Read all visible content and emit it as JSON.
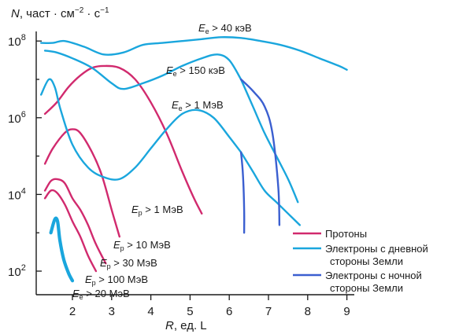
{
  "chart_data": {
    "type": "line",
    "title": "N, част · см⁻² · с⁻¹",
    "title_parts": {
      "symbol": "N",
      "rest": ", част · см",
      "exp1": "−2",
      "mid": " · с",
      "exp2": "−1"
    },
    "xlabel": "R, ед. L",
    "xlabel_parts": {
      "symbol": "R",
      "rest": ", ед. L"
    },
    "x_ticks": [
      "2",
      "3",
      "4",
      "5",
      "6",
      "7",
      "8",
      "9"
    ],
    "y_ticks": [
      {
        "value": 2,
        "label": "10",
        "exp": "2"
      },
      {
        "value": 4,
        "label": "10",
        "exp": "4"
      },
      {
        "value": 6,
        "label": "10",
        "exp": "6"
      },
      {
        "value": 8,
        "label": "10",
        "exp": "8"
      }
    ],
    "xlim": [
      1.0,
      9.0
    ],
    "ylim_log10": [
      1.5,
      8.0
    ],
    "yscale": "log",
    "grid": false,
    "legend": [
      {
        "label": "Протоны",
        "color": "#d12a6e"
      },
      {
        "label": "Электроны с дневной",
        "label2": "стороны Земли",
        "color": "#1aa6dd"
      },
      {
        "label": "Электроны с ночной",
        "label2": "стороны Земли",
        "color": "#3b5fd0"
      }
    ],
    "legend_position": "bottom-right",
    "series": [
      {
        "group": "proton",
        "color": "#d12a6e",
        "width": 2.4,
        "points": [
          [
            1.3,
            6.1
          ],
          [
            1.6,
            6.4
          ],
          [
            1.9,
            6.8
          ],
          [
            2.2,
            7.1
          ],
          [
            2.5,
            7.3
          ],
          [
            2.8,
            7.35
          ],
          [
            3.2,
            7.3
          ],
          [
            3.6,
            7.0
          ],
          [
            4.0,
            6.4
          ],
          [
            4.4,
            5.6
          ],
          [
            4.8,
            4.6
          ],
          [
            5.1,
            3.9
          ],
          [
            5.3,
            3.5
          ]
        ]
      },
      {
        "group": "proton",
        "color": "#d12a6e",
        "width": 2.4,
        "points": [
          [
            1.3,
            4.8
          ],
          [
            1.5,
            5.2
          ],
          [
            1.8,
            5.6
          ],
          [
            2.0,
            5.7
          ],
          [
            2.2,
            5.6
          ],
          [
            2.5,
            5.1
          ],
          [
            2.75,
            4.5
          ],
          [
            3.0,
            3.6
          ],
          [
            3.2,
            2.9
          ]
        ]
      },
      {
        "group": "proton",
        "color": "#d12a6e",
        "width": 2.4,
        "points": [
          [
            1.3,
            4.1
          ],
          [
            1.45,
            4.35
          ],
          [
            1.6,
            4.4
          ],
          [
            1.8,
            4.3
          ],
          [
            2.0,
            3.9
          ],
          [
            2.2,
            3.6
          ],
          [
            2.4,
            3.2
          ],
          [
            2.6,
            2.7
          ],
          [
            2.85,
            2.2
          ]
        ]
      },
      {
        "group": "proton",
        "color": "#d12a6e",
        "width": 2.4,
        "points": [
          [
            1.3,
            3.9
          ],
          [
            1.45,
            4.1
          ],
          [
            1.6,
            4.05
          ],
          [
            1.8,
            3.75
          ],
          [
            2.0,
            3.3
          ],
          [
            2.2,
            2.9
          ],
          [
            2.4,
            2.4
          ],
          [
            2.6,
            2.0
          ]
        ]
      },
      {
        "group": "electron-day",
        "color": "#1aa6dd",
        "width": 2.4,
        "points": [
          [
            1.2,
            7.95
          ],
          [
            1.5,
            7.95
          ],
          [
            1.8,
            8.0
          ],
          [
            2.3,
            7.85
          ],
          [
            2.8,
            7.65
          ],
          [
            3.3,
            7.7
          ],
          [
            3.8,
            7.9
          ],
          [
            4.3,
            7.95
          ],
          [
            4.8,
            8.0
          ],
          [
            5.3,
            8.05
          ],
          [
            5.8,
            8.1
          ],
          [
            6.3,
            8.08
          ],
          [
            6.8,
            8.0
          ],
          [
            7.3,
            7.9
          ],
          [
            7.8,
            7.75
          ],
          [
            8.3,
            7.55
          ],
          [
            8.8,
            7.35
          ],
          [
            9.0,
            7.25
          ]
        ]
      },
      {
        "group": "electron-day",
        "color": "#1aa6dd",
        "width": 2.4,
        "points": [
          [
            1.3,
            7.75
          ],
          [
            1.6,
            7.7
          ],
          [
            2.0,
            7.55
          ],
          [
            2.5,
            7.3
          ],
          [
            3.0,
            6.9
          ],
          [
            3.3,
            6.75
          ],
          [
            3.8,
            6.9
          ],
          [
            4.3,
            7.1
          ],
          [
            4.8,
            7.35
          ],
          [
            5.3,
            7.55
          ],
          [
            5.7,
            7.65
          ],
          [
            6.0,
            7.5
          ],
          [
            6.3,
            7.0
          ]
        ]
      },
      {
        "group": "electron-day",
        "color": "#1aa6dd",
        "width": 2.4,
        "points": [
          [
            1.2,
            6.6
          ],
          [
            1.4,
            7.0
          ],
          [
            1.55,
            6.8
          ],
          [
            1.7,
            6.2
          ],
          [
            2.0,
            5.3
          ],
          [
            2.4,
            4.7
          ],
          [
            2.8,
            4.45
          ],
          [
            3.2,
            4.4
          ],
          [
            3.6,
            4.7
          ],
          [
            4.0,
            5.2
          ],
          [
            4.4,
            5.7
          ],
          [
            4.8,
            6.1
          ],
          [
            5.2,
            6.2
          ],
          [
            5.6,
            6.0
          ],
          [
            6.0,
            5.5
          ],
          [
            6.3,
            5.1
          ]
        ]
      },
      {
        "group": "electron-day",
        "color": "#1aa6dd",
        "width": 2.4,
        "points": [
          [
            6.3,
            7.0
          ],
          [
            6.6,
            6.3
          ],
          [
            6.9,
            5.6
          ],
          [
            7.2,
            5.0
          ],
          [
            7.5,
            4.4
          ],
          [
            7.75,
            3.8
          ]
        ]
      },
      {
        "group": "electron-day",
        "color": "#1aa6dd",
        "width": 2.4,
        "points": [
          [
            6.3,
            5.1
          ],
          [
            6.6,
            4.6
          ],
          [
            6.9,
            4.1
          ],
          [
            7.2,
            3.8
          ],
          [
            7.5,
            3.5
          ],
          [
            7.8,
            3.2
          ]
        ]
      },
      {
        "group": "electron-night",
        "color": "#3b5fd0",
        "width": 2.4,
        "points": [
          [
            6.3,
            7.0
          ],
          [
            6.6,
            6.7
          ],
          [
            6.9,
            6.3
          ],
          [
            7.1,
            5.6
          ],
          [
            7.25,
            4.2
          ],
          [
            7.28,
            3.2
          ]
        ]
      },
      {
        "group": "electron-night",
        "color": "#3b5fd0",
        "width": 2.4,
        "points": [
          [
            6.3,
            5.1
          ],
          [
            6.35,
            4.5
          ],
          [
            6.38,
            3.6
          ],
          [
            6.38,
            3.0
          ]
        ]
      },
      {
        "group": "electron-low",
        "color": "#1aa6dd",
        "width": 4.2,
        "points": [
          [
            1.45,
            3.0
          ],
          [
            1.55,
            3.35
          ],
          [
            1.62,
            3.3
          ],
          [
            1.68,
            2.8
          ],
          [
            1.78,
            2.3
          ],
          [
            1.9,
            1.95
          ],
          [
            2.0,
            1.75
          ]
        ]
      }
    ],
    "annotations": [
      {
        "key": "e40k",
        "sym": "E",
        "sub": "e",
        "text": " > 40 кэВ"
      },
      {
        "key": "e150k",
        "sym": "E",
        "sub": "e",
        "text": " > 150 кэВ"
      },
      {
        "key": "e1M",
        "sym": "E",
        "sub": "e",
        "text": " > 1 МэВ"
      },
      {
        "key": "p1M",
        "sym": "E",
        "sub": "p",
        "text": " > 1 МэВ"
      },
      {
        "key": "p10M",
        "sym": "E",
        "sub": "p",
        "text": " > 10 МэВ"
      },
      {
        "key": "p30M",
        "sym": "E",
        "sub": "p",
        "text": " > 30 МэВ"
      },
      {
        "key": "p100M",
        "sym": "E",
        "sub": "p",
        "text": " > 100 МэВ"
      },
      {
        "key": "e20M",
        "sym": "E",
        "sub": "e",
        "text": " > 20 МэВ"
      }
    ]
  }
}
